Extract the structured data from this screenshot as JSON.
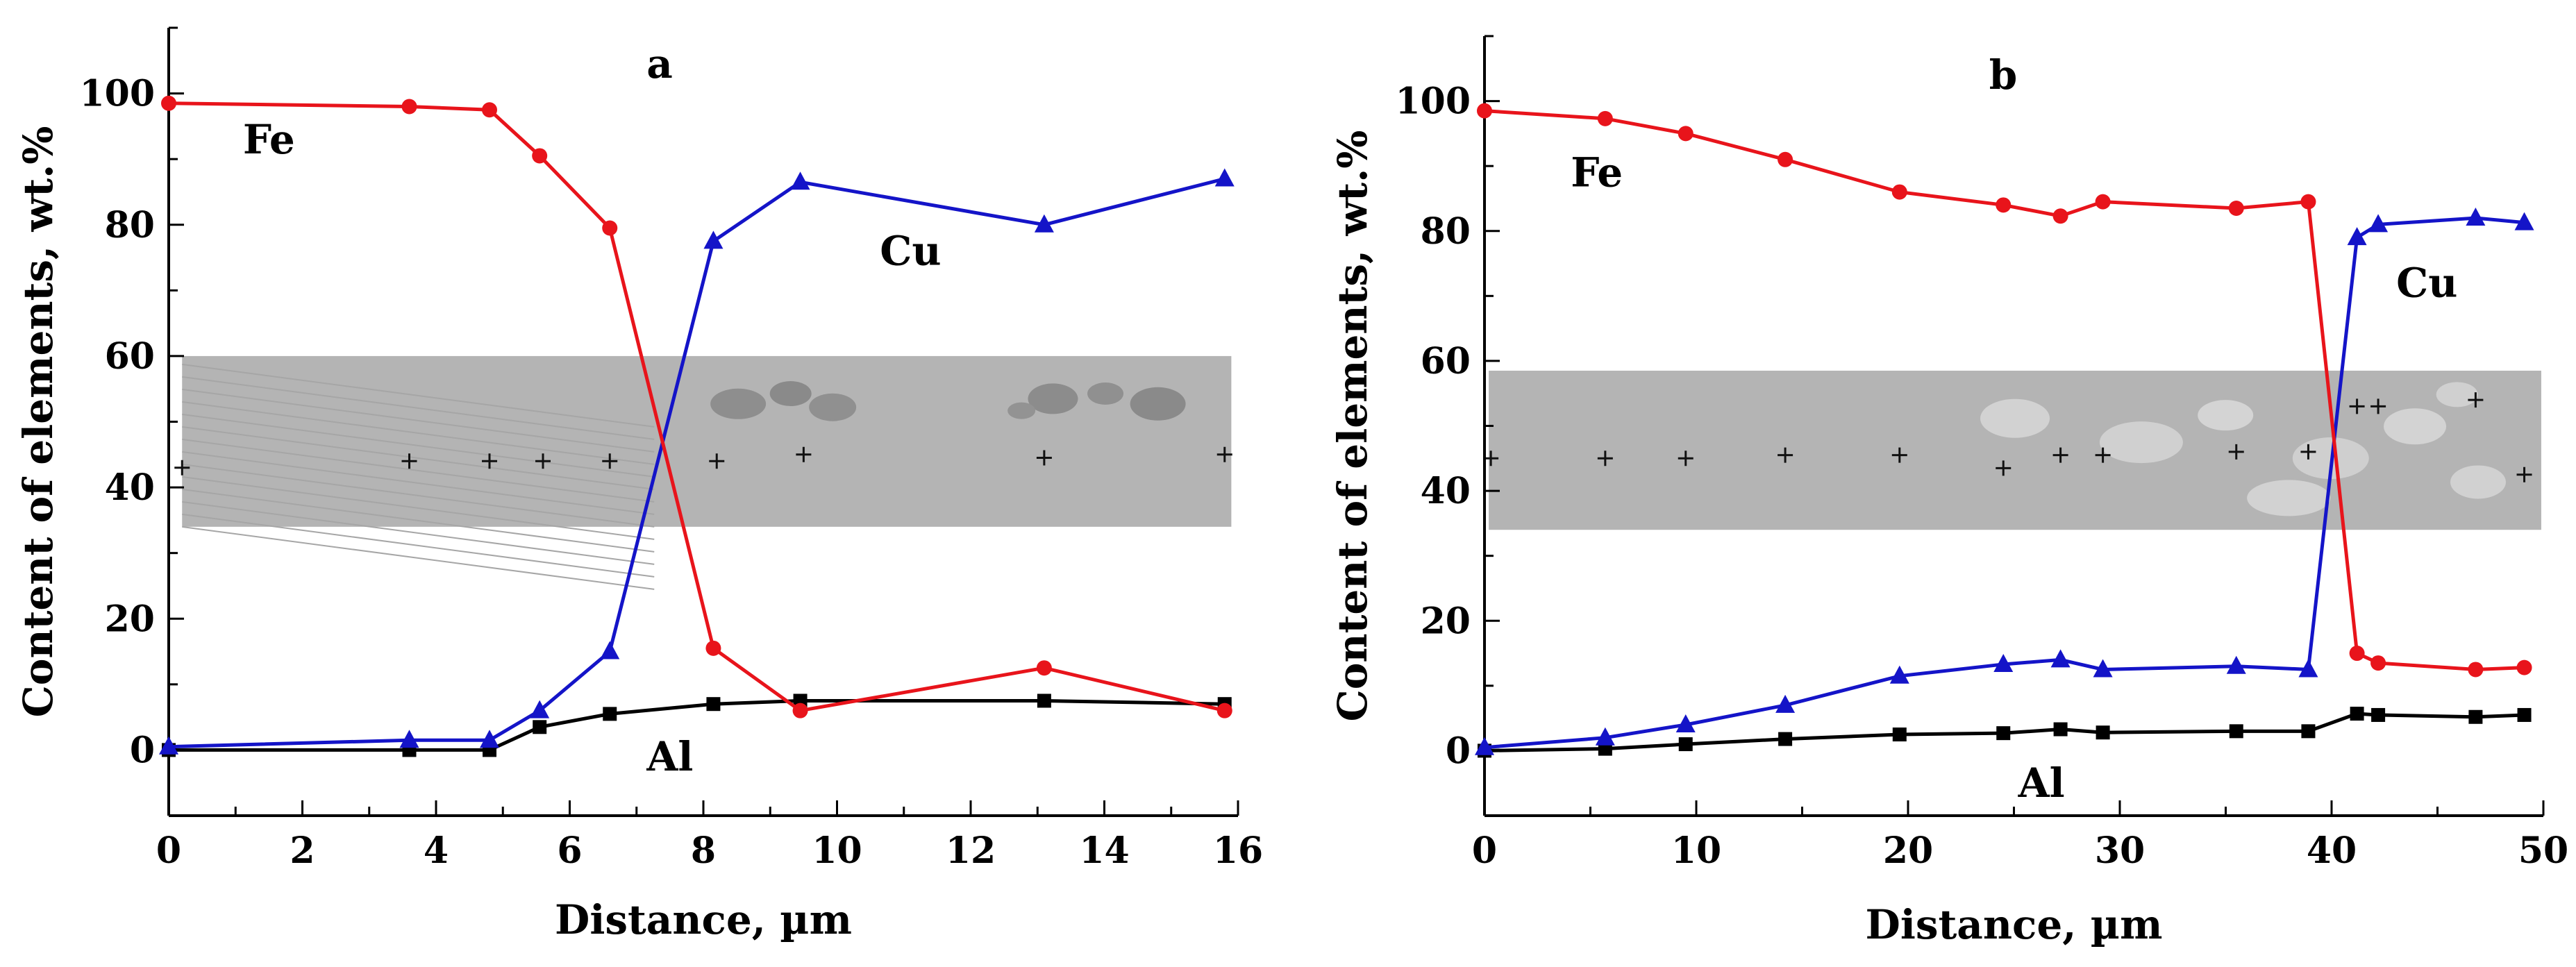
{
  "chart_data": [
    {
      "type": "line",
      "panel_letter": "a",
      "xlabel": "Distance, µm",
      "ylabel": "Content of elements, wt.%",
      "xlim": [
        0,
        16
      ],
      "ylim": [
        -10,
        110
      ],
      "xticks": [
        0,
        2,
        4,
        6,
        8,
        10,
        12,
        14,
        16
      ],
      "xtick_labels": [
        "0",
        "2",
        "4",
        "6",
        "8",
        "10",
        "12",
        "14",
        "16"
      ],
      "yticks": [
        0,
        20,
        40,
        60,
        80,
        100
      ],
      "ytick_labels": [
        "0",
        "20",
        "40",
        "60",
        "80",
        "100"
      ],
      "inset_image": {
        "x_range": [
          0.2,
          15.9
        ],
        "y_range": [
          34,
          60
        ],
        "cross_marks_x": [
          0.2,
          3.6,
          4.8,
          5.6,
          6.6,
          8.2,
          9.5,
          13.1,
          15.8
        ],
        "cross_marks_y": [
          43,
          44,
          44,
          44,
          44,
          44,
          45,
          44.5,
          45
        ]
      },
      "series": [
        {
          "name": "Fe",
          "color": "#e8141b",
          "marker": "circle",
          "label_at": [
            1.5,
            93
          ],
          "x": [
            0,
            3.6,
            4.8,
            5.55,
            6.6,
            8.15,
            9.45,
            13.1,
            15.8
          ],
          "y": [
            98.5,
            98,
            97.5,
            90.5,
            79.5,
            15.5,
            6,
            12.5,
            6
          ]
        },
        {
          "name": "Cu",
          "color": "#1414c8",
          "marker": "triangle",
          "label_at": [
            11.1,
            76
          ],
          "x": [
            0,
            3.6,
            4.8,
            5.55,
            6.6,
            8.15,
            9.45,
            13.1,
            15.8
          ],
          "y": [
            0.5,
            1.5,
            1.5,
            6,
            15,
            77.5,
            86.5,
            80,
            87
          ]
        },
        {
          "name": "Al",
          "color": "#000000",
          "marker": "square",
          "label_at": [
            7.5,
            -1
          ],
          "x": [
            0,
            3.6,
            4.8,
            5.55,
            6.6,
            8.15,
            9.45,
            13.1,
            15.8
          ],
          "y": [
            0,
            0,
            0,
            3.5,
            5.5,
            7,
            7.5,
            7.5,
            7
          ]
        }
      ]
    },
    {
      "type": "line",
      "panel_letter": "b",
      "xlabel": "Distance, µm",
      "ylabel": "Content of elements, wt.%",
      "xlim": [
        0,
        50
      ],
      "ylim": [
        -10,
        110
      ],
      "xticks": [
        0,
        10,
        20,
        30,
        40,
        50
      ],
      "xtick_labels": [
        "0",
        "10",
        "20",
        "30",
        "40",
        "50"
      ],
      "yticks": [
        0,
        20,
        40,
        60,
        80,
        100
      ],
      "ytick_labels": [
        "0",
        "20",
        "40",
        "60",
        "80",
        "100"
      ],
      "inset_image": {
        "x_range": [
          0.2,
          49.9
        ],
        "y_range": [
          34,
          58.5
        ],
        "cross_marks_x": [
          0.3,
          5.7,
          9.5,
          14.2,
          19.6,
          24.5,
          27.2,
          29.2,
          35.5,
          38.9,
          41.2,
          42.2,
          46.8,
          49.1
        ],
        "cross_marks_y": [
          45,
          45,
          45,
          45.5,
          45.5,
          43.5,
          45.5,
          45.5,
          46,
          46,
          53,
          53,
          54,
          42.5
        ]
      },
      "series": [
        {
          "name": "Fe",
          "color": "#e8141b",
          "marker": "circle",
          "label_at": [
            5.3,
            89
          ],
          "x": [
            0,
            5.7,
            9.5,
            14.2,
            19.6,
            24.5,
            27.2,
            29.2,
            35.5,
            38.9,
            41.2,
            42.2,
            46.8,
            49.1
          ],
          "y": [
            98.5,
            97.3,
            95,
            91,
            86,
            84,
            82.3,
            84.5,
            83.5,
            84.5,
            15,
            13.5,
            12.5,
            12.8
          ]
        },
        {
          "name": "Cu",
          "color": "#1414c8",
          "marker": "triangle",
          "label_at": [
            44.5,
            72
          ],
          "x": [
            0,
            5.7,
            9.5,
            14.2,
            19.6,
            24.5,
            27.2,
            29.2,
            35.5,
            38.9,
            41.2,
            42.2,
            46.8,
            49.1
          ],
          "y": [
            0.5,
            2,
            4,
            7,
            11.5,
            13.3,
            14,
            12.5,
            13,
            12.5,
            79,
            81,
            82,
            81.3
          ]
        },
        {
          "name": "Al",
          "color": "#000000",
          "marker": "square",
          "label_at": [
            26.3,
            -5
          ],
          "x": [
            0,
            5.7,
            9.5,
            14.2,
            19.6,
            24.5,
            27.2,
            29.2,
            35.5,
            38.9,
            41.2,
            42.2,
            46.8,
            49.1
          ],
          "y": [
            0,
            0.3,
            1,
            1.8,
            2.5,
            2.7,
            3.3,
            2.8,
            3,
            3,
            5.7,
            5.5,
            5.2,
            5.5
          ]
        }
      ]
    }
  ]
}
